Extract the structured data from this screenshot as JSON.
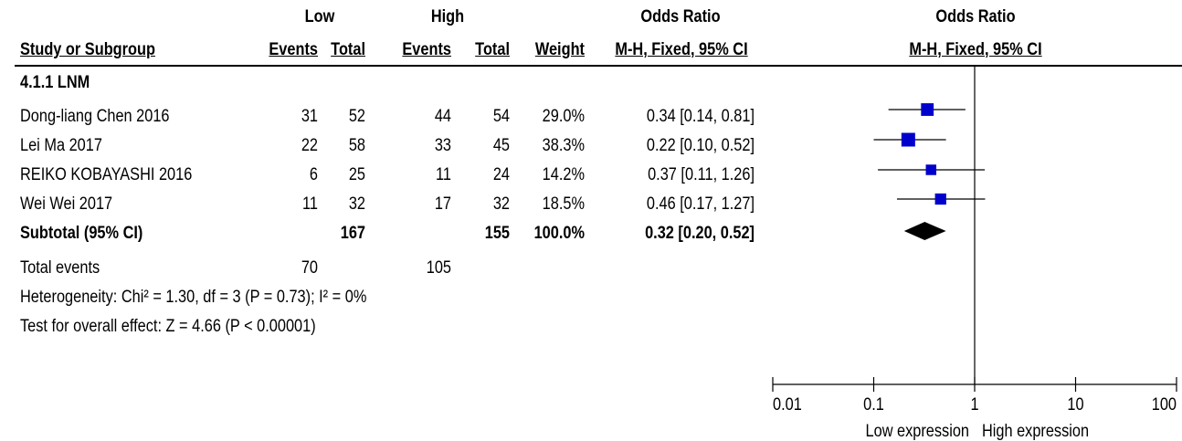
{
  "header": {
    "group_low": "Low",
    "group_high": "High",
    "or_title_table": "Odds Ratio",
    "or_title_plot": "Odds Ratio",
    "col_study": "Study or Subgroup",
    "col_events_low": "Events",
    "col_total_low": "Total",
    "col_events_high": "Events",
    "col_total_high": "Total",
    "col_weight": "Weight",
    "col_method_table": "M-H, Fixed, 95% CI",
    "col_method_plot": "M-H, Fixed, 95% CI"
  },
  "subgroup_label": "4.1.1 LNM",
  "studies": [
    {
      "name": "Dong-liang Chen 2016",
      "events_low": "31",
      "total_low": "52",
      "events_high": "44",
      "total_high": "54",
      "weight": "29.0%",
      "ci_text": "0.34 [0.14, 0.81]"
    },
    {
      "name": "Lei Ma 2017",
      "events_low": "22",
      "total_low": "58",
      "events_high": "33",
      "total_high": "45",
      "weight": "38.3%",
      "ci_text": "0.22 [0.10, 0.52]"
    },
    {
      "name": "REIKO KOBAYASHI 2016",
      "events_low": "6",
      "total_low": "25",
      "events_high": "11",
      "total_high": "24",
      "weight": "14.2%",
      "ci_text": "0.37 [0.11, 1.26]"
    },
    {
      "name": "Wei Wei 2017",
      "events_low": "11",
      "total_low": "32",
      "events_high": "17",
      "total_high": "32",
      "weight": "18.5%",
      "ci_text": "0.46 [0.17, 1.27]"
    }
  ],
  "subtotal": {
    "label": "Subtotal (95% CI)",
    "total_low": "167",
    "total_high": "155",
    "weight": "100.0%",
    "ci_text": "0.32 [0.20, 0.52]"
  },
  "total_events": {
    "label": "Total events",
    "low": "70",
    "high": "105"
  },
  "heterogeneity": "Heterogeneity: Chi² = 1.30, df = 3 (P = 0.73); I² = 0%",
  "overall_effect": "Test for overall effect: Z = 4.66 (P < 0.00001)",
  "chart_data": {
    "type": "scatter",
    "title": "Odds Ratio",
    "subtitle": "M-H, Fixed, 95% CI",
    "x_scale": "log",
    "xlim": [
      0.01,
      100
    ],
    "x_ticks": [
      0.01,
      0.1,
      1,
      10,
      100
    ],
    "x_tick_labels": [
      "0.01",
      "0.1",
      "1",
      "10",
      "100"
    ],
    "null_line": 1,
    "favours_left": "Low expression",
    "favours_right": "High expression",
    "studies": [
      {
        "name": "Dong-liang Chen 2016",
        "or": 0.34,
        "ci": [
          0.14,
          0.81
        ],
        "weight": 29.0
      },
      {
        "name": "Lei Ma 2017",
        "or": 0.22,
        "ci": [
          0.1,
          0.52
        ],
        "weight": 38.3
      },
      {
        "name": "REIKO KOBAYASHI 2016",
        "or": 0.37,
        "ci": [
          0.11,
          1.26
        ],
        "weight": 14.2
      },
      {
        "name": "Wei Wei 2017",
        "or": 0.46,
        "ci": [
          0.17,
          1.27
        ],
        "weight": 18.5
      }
    ],
    "pooled": {
      "name": "Subtotal (95% CI)",
      "or": 0.32,
      "ci": [
        0.2,
        0.52
      ]
    },
    "colors": {
      "marker": "#0000cc",
      "diamond": "#000000",
      "line": "#000000"
    }
  }
}
